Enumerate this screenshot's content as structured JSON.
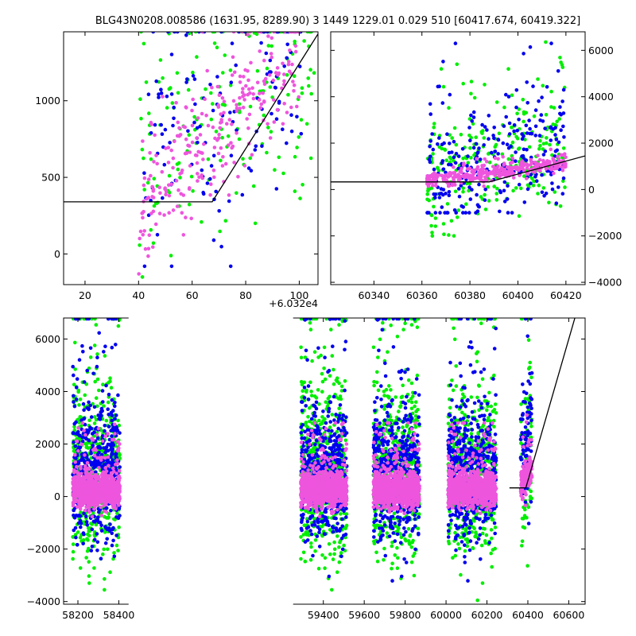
{
  "title": "BLG43N0208.008586 (1631.95, 8289.90)    3 1449 1229.01 0.029 510 [60417.674, 60419.322]",
  "colors": {
    "series_a": "#00ee00",
    "series_b": "#0000ee",
    "series_c": "#ee55dd",
    "model": "#000000"
  },
  "chart_data": [
    {
      "panel": "top-left",
      "type": "scatter",
      "x_offset_label": "+6.032e4",
      "xlim": [
        12,
        107
      ],
      "ylim": [
        -200,
        1450
      ],
      "xticks": [
        20,
        40,
        60,
        80,
        100
      ],
      "yticks": [
        0,
        500,
        1000
      ],
      "model_line": {
        "x": [
          12,
          67.5,
          107.5
        ],
        "y": [
          340,
          340,
          1450
        ]
      },
      "series": [
        {
          "color_key": "series_a",
          "x_range": [
            40,
            106
          ],
          "y_range": [
            -150,
            1450
          ],
          "trend": [
            [
              40,
              550
            ],
            [
              106,
              1300
            ]
          ],
          "count": 180,
          "spread": 380
        },
        {
          "color_key": "series_b",
          "x_range": [
            42,
            102
          ],
          "y_range": [
            -80,
            1450
          ],
          "trend": [
            [
              42,
              600
            ],
            [
              102,
              1150
            ]
          ],
          "count": 140,
          "spread": 360
        },
        {
          "color_key": "series_c",
          "x_range": [
            40,
            100
          ],
          "y_range": [
            -130,
            1450
          ],
          "trend": [
            [
              40,
              250
            ],
            [
              100,
              1300
            ]
          ],
          "count": 260,
          "spread": 200
        }
      ]
    },
    {
      "panel": "top-right",
      "type": "scatter",
      "xlim": [
        60322,
        60428
      ],
      "ylim": [
        -4100,
        6800
      ],
      "xticks": [
        60340,
        60360,
        60380,
        60400,
        60420
      ],
      "yticks": [
        -4000,
        -2000,
        0,
        2000,
        4000,
        6000
      ],
      "model_line": {
        "x": [
          60322,
          60388,
          60428
        ],
        "y": [
          330,
          330,
          1450
        ]
      },
      "series": [
        {
          "color_key": "series_a",
          "x_range": [
            60362,
            60420
          ],
          "y_range": [
            -2000,
            6600
          ],
          "trend": [
            [
              60362,
              600
            ],
            [
              60420,
              1800
            ]
          ],
          "count": 260,
          "spread": 1300
        },
        {
          "color_key": "series_b",
          "x_range": [
            60362,
            60420
          ],
          "y_range": [
            -1000,
            6300
          ],
          "trend": [
            [
              60362,
              500
            ],
            [
              60420,
              2200
            ]
          ],
          "count": 260,
          "spread": 1300
        },
        {
          "color_key": "series_c",
          "x_range": [
            60362,
            60420
          ],
          "y_range": [
            -300,
            2000
          ],
          "trend": [
            [
              60362,
              350
            ],
            [
              60420,
              1150
            ]
          ],
          "count": 300,
          "spread": 170
        }
      ]
    },
    {
      "panel": "bottom",
      "type": "scatter",
      "xlim": [
        58130,
        60680
      ],
      "ylim": [
        -4100,
        6800
      ],
      "xticks": [
        58200,
        58400,
        59400,
        59600,
        59800,
        60000,
        60200,
        60400,
        60600
      ],
      "yticks": [
        -4000,
        -2000,
        0,
        2000,
        4000,
        6000
      ],
      "break_gap_x": [
        58440,
        59260
      ],
      "model_line": {
        "x": [
          60310,
          60390,
          60630
        ],
        "y": [
          330,
          330,
          6800
        ]
      },
      "seasons": [
        {
          "x_range": [
            58175,
            58405
          ]
        },
        {
          "x_range": [
            59290,
            59515
          ]
        },
        {
          "x_range": [
            59645,
            59870
          ]
        },
        {
          "x_range": [
            60010,
            60245
          ]
        },
        {
          "x_range": [
            60365,
            60420
          ]
        }
      ]
    }
  ]
}
